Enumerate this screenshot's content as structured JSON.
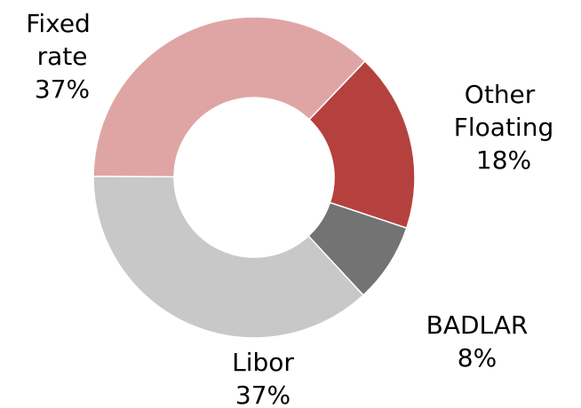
{
  "chart_data": {
    "type": "donut",
    "categories": [
      "Other Floating",
      "BADLAR",
      "Libor",
      "Fixed rate"
    ],
    "values": [
      18,
      8,
      37,
      37
    ],
    "value_labels": [
      "18%",
      "8%",
      "37%",
      "37%"
    ],
    "colors": [
      "#b5413f",
      "#737373",
      "#c8c8c8",
      "#dfa5a5"
    ]
  }
}
